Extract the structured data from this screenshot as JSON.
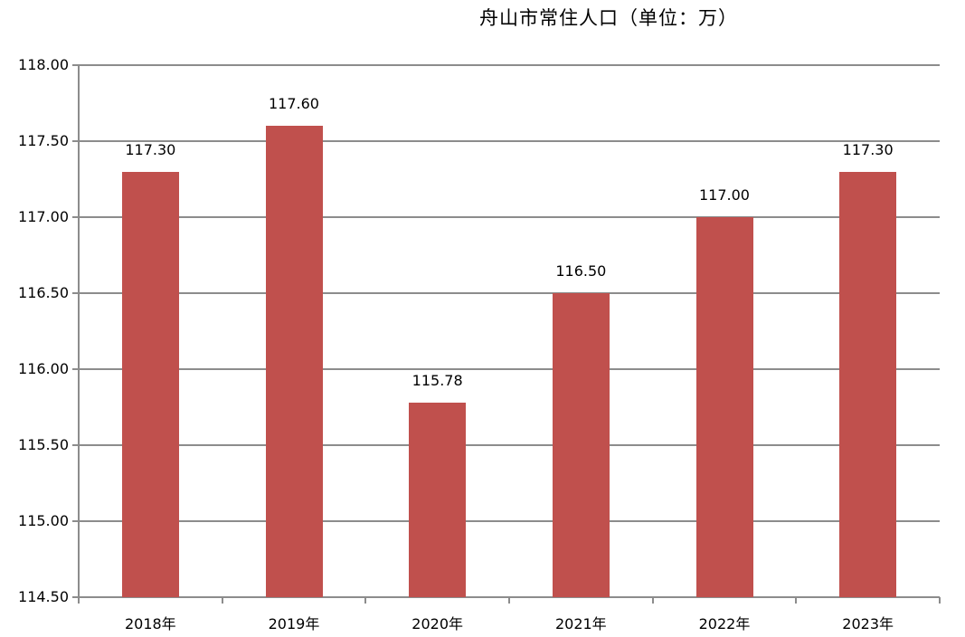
{
  "chart_data": {
    "type": "bar",
    "title": "舟山市常住人口（单位：万）",
    "categories": [
      "2018年",
      "2019年",
      "2020年",
      "2021年",
      "2022年",
      "2023年"
    ],
    "values": [
      117.3,
      117.6,
      115.78,
      116.5,
      117.0,
      117.3
    ],
    "data_labels": [
      "117.30",
      "117.60",
      "115.78",
      "116.50",
      "117.00",
      "117.30"
    ],
    "xlabel": "",
    "ylabel": "",
    "ylim": [
      114.5,
      118.0
    ],
    "yticks": [
      "118.00",
      "117.50",
      "117.00",
      "116.50",
      "116.00",
      "115.50",
      "115.00",
      "114.50"
    ],
    "grid": true,
    "legend": null,
    "bar_color": "#c0504d"
  }
}
